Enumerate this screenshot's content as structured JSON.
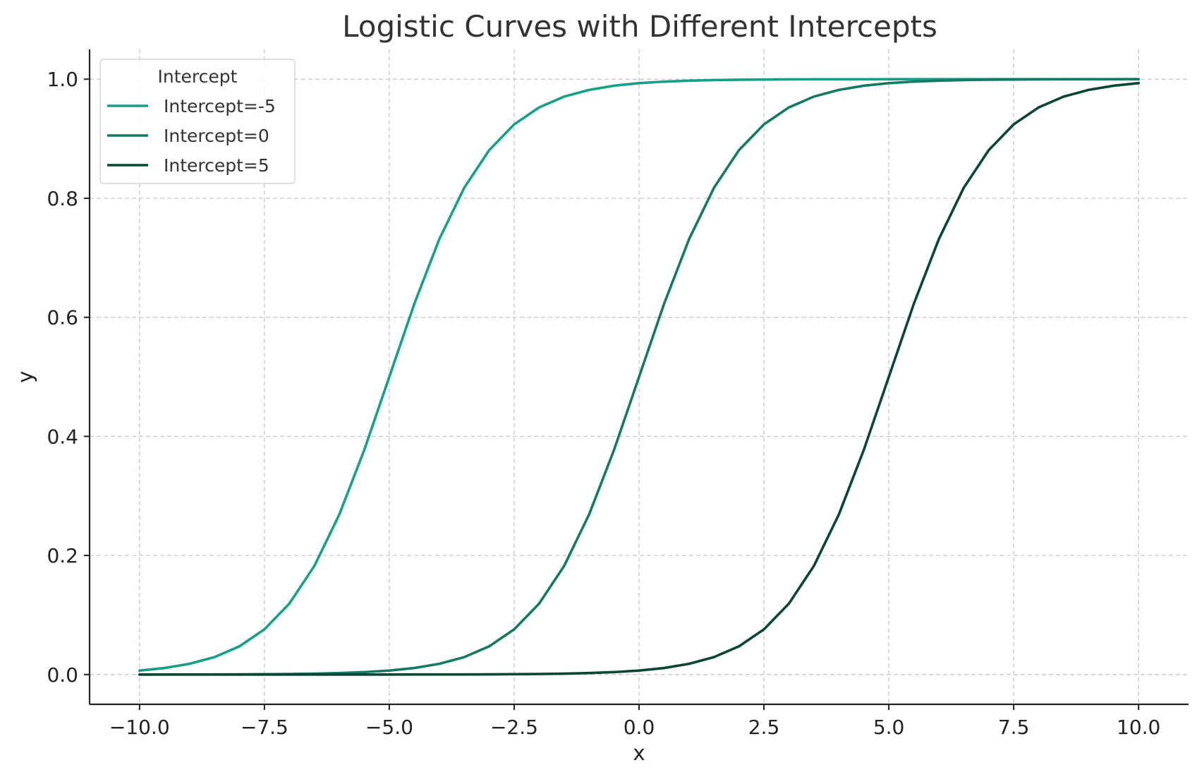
{
  "chart_data": {
    "type": "line",
    "title": "Logistic Curves with Different Intercepts",
    "xlabel": "x",
    "ylabel": "y",
    "xlim": [
      -11,
      11
    ],
    "ylim": [
      -0.05,
      1.05
    ],
    "xticks": [
      -10.0,
      -7.5,
      -5.0,
      -2.5,
      0.0,
      2.5,
      5.0,
      7.5,
      10.0
    ],
    "xtick_labels": [
      "−10.0",
      "−7.5",
      "−5.0",
      "−2.5",
      "0.0",
      "2.5",
      "5.0",
      "7.5",
      "10.0"
    ],
    "yticks": [
      0.0,
      0.2,
      0.4,
      0.6,
      0.8,
      1.0
    ],
    "ytick_labels": [
      "0.0",
      "0.2",
      "0.4",
      "0.6",
      "0.8",
      "1.0"
    ],
    "grid": true,
    "legend": {
      "title": "Intercept",
      "placement": "top-left"
    },
    "function": "y = 1 / (1 + exp(-(x - c))), c = -5, 0, 5; x from -10 to 10",
    "series": [
      {
        "name": "Intercept=-5",
        "color": "#16a085",
        "x": [
          -10,
          -9.5,
          -9,
          -8.5,
          -8,
          -7.5,
          -7,
          -6.5,
          -6,
          -5.5,
          -5,
          -4.5,
          -4,
          -3.5,
          -3,
          -2.5,
          -2,
          -1.5,
          -1,
          -0.5,
          0,
          0.5,
          1,
          1.5,
          2,
          2.5,
          3,
          3.5,
          4,
          4.5,
          5,
          5.5,
          6,
          6.5,
          7,
          7.5,
          8,
          8.5,
          9,
          9.5,
          10
        ],
        "y": [
          0.0067,
          0.011,
          0.018,
          0.0293,
          0.0474,
          0.0759,
          0.1192,
          0.1824,
          0.2689,
          0.3775,
          0.5,
          0.6225,
          0.7311,
          0.8176,
          0.8808,
          0.9241,
          0.9526,
          0.9707,
          0.982,
          0.989,
          0.9933,
          0.9959,
          0.9975,
          0.9985,
          0.9991,
          0.9994,
          0.9997,
          0.9998,
          0.9999,
          0.9999,
          1.0,
          1.0,
          1.0,
          1.0,
          1.0,
          1.0,
          1.0,
          1.0,
          1.0,
          1.0,
          1.0
        ]
      },
      {
        "name": "Intercept=0",
        "color": "#157a62",
        "x": [
          -10,
          -9.5,
          -9,
          -8.5,
          -8,
          -7.5,
          -7,
          -6.5,
          -6,
          -5.5,
          -5,
          -4.5,
          -4,
          -3.5,
          -3,
          -2.5,
          -2,
          -1.5,
          -1,
          -0.5,
          0,
          0.5,
          1,
          1.5,
          2,
          2.5,
          3,
          3.5,
          4,
          4.5,
          5,
          5.5,
          6,
          6.5,
          7,
          7.5,
          8,
          8.5,
          9,
          9.5,
          10
        ],
        "y": [
          0.0,
          0.0001,
          0.0001,
          0.0002,
          0.0003,
          0.0006,
          0.0009,
          0.0015,
          0.0025,
          0.0041,
          0.0067,
          0.011,
          0.018,
          0.0293,
          0.0474,
          0.0759,
          0.1192,
          0.1824,
          0.2689,
          0.3775,
          0.5,
          0.6225,
          0.7311,
          0.8176,
          0.8808,
          0.9241,
          0.9526,
          0.9707,
          0.982,
          0.989,
          0.9933,
          0.9959,
          0.9975,
          0.9985,
          0.9991,
          0.9994,
          0.9997,
          0.9998,
          0.9999,
          0.9999,
          1.0
        ]
      },
      {
        "name": "Intercept=5",
        "color": "#0b4535",
        "x": [
          -10,
          -9.5,
          -9,
          -8.5,
          -8,
          -7.5,
          -7,
          -6.5,
          -6,
          -5.5,
          -5,
          -4.5,
          -4,
          -3.5,
          -3,
          -2.5,
          -2,
          -1.5,
          -1,
          -0.5,
          0,
          0.5,
          1,
          1.5,
          2,
          2.5,
          3,
          3.5,
          4,
          4.5,
          5,
          5.5,
          6,
          6.5,
          7,
          7.5,
          8,
          8.5,
          9,
          9.5,
          10
        ],
        "y": [
          0.0,
          0.0,
          0.0,
          0.0,
          0.0,
          0.0,
          0.0,
          0.0,
          0.0,
          0.0,
          0.0,
          0.0001,
          0.0001,
          0.0002,
          0.0003,
          0.0006,
          0.0009,
          0.0015,
          0.0025,
          0.0041,
          0.0067,
          0.011,
          0.018,
          0.0293,
          0.0474,
          0.0759,
          0.1192,
          0.1824,
          0.2689,
          0.3775,
          0.5,
          0.6225,
          0.7311,
          0.8176,
          0.8808,
          0.9241,
          0.9526,
          0.9707,
          0.982,
          0.989,
          0.9933
        ]
      }
    ]
  }
}
